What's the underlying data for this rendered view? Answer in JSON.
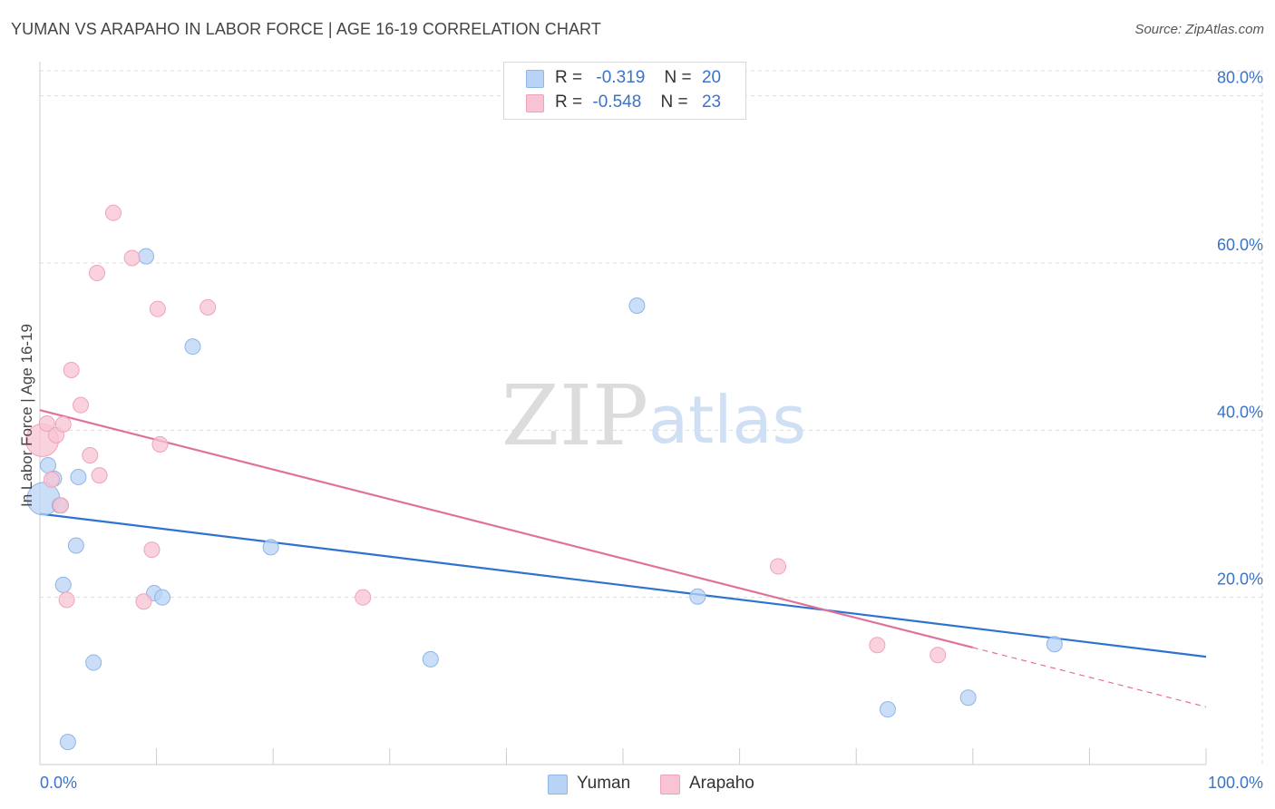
{
  "title": "YUMAN VS ARAPAHO IN LABOR FORCE | AGE 16-19 CORRELATION CHART",
  "source": "Source: ZipAtlas.com",
  "watermark": {
    "zip": "ZIP",
    "atlas": "atlas"
  },
  "legend": {
    "yuman": {
      "r_label": "R =",
      "r_value": "-0.319",
      "n_label": "N =",
      "n_value": "20"
    },
    "arapaho": {
      "r_label": "R =",
      "r_value": "-0.548",
      "n_label": "N =",
      "n_value": "23"
    }
  },
  "bottom_legend": {
    "yuman": "Yuman",
    "arapaho": "Arapaho"
  },
  "colors": {
    "yuman_fill": "#b8d3f5",
    "yuman_stroke": "#8fb5e6",
    "yuman_line": "#2f72d0",
    "arapaho_fill": "#f8c3d3",
    "arapaho_stroke": "#efa3ba",
    "arapaho_line": "#e0719a",
    "axis_label": "#3a73c7",
    "grid": "#dddddd"
  },
  "chart_data": {
    "type": "scatter",
    "title": "YUMAN VS ARAPAHO IN LABOR FORCE | AGE 16-19 CORRELATION CHART",
    "xlabel": "",
    "ylabel": "In Labor Force | Age 16-19",
    "xlim": [
      0,
      100
    ],
    "ylim": [
      0,
      83
    ],
    "x_tick_labels": [
      "0.0%",
      "100.0%"
    ],
    "y_ticks": [
      20,
      40,
      60,
      80
    ],
    "y_tick_labels": [
      "20.0%",
      "40.0%",
      "60.0%",
      "80.0%"
    ],
    "grid": true,
    "series": [
      {
        "name": "Yuman",
        "points": [
          {
            "x": 0.3,
            "y": 31.8,
            "big": true
          },
          {
            "x": 0.7,
            "y": 35.8
          },
          {
            "x": 1.2,
            "y": 34.2
          },
          {
            "x": 1.7,
            "y": 31.0
          },
          {
            "x": 2.0,
            "y": 21.5
          },
          {
            "x": 2.4,
            "y": 2.7
          },
          {
            "x": 3.1,
            "y": 26.2
          },
          {
            "x": 3.3,
            "y": 34.4
          },
          {
            "x": 4.6,
            "y": 12.2
          },
          {
            "x": 9.1,
            "y": 60.8
          },
          {
            "x": 9.8,
            "y": 20.5
          },
          {
            "x": 10.5,
            "y": 20.0
          },
          {
            "x": 13.1,
            "y": 50.0
          },
          {
            "x": 19.8,
            "y": 26.0
          },
          {
            "x": 33.5,
            "y": 12.6
          },
          {
            "x": 51.2,
            "y": 54.9
          },
          {
            "x": 56.4,
            "y": 20.1
          },
          {
            "x": 72.7,
            "y": 6.6
          },
          {
            "x": 79.6,
            "y": 8.0
          },
          {
            "x": 87.0,
            "y": 14.4
          }
        ],
        "trend": {
          "x1": 0,
          "y1": 30.0,
          "x2": 100,
          "y2": 12.9
        }
      },
      {
        "name": "Arapaho",
        "points": [
          {
            "x": 0.2,
            "y": 38.8,
            "big": true
          },
          {
            "x": 0.6,
            "y": 40.8
          },
          {
            "x": 1.0,
            "y": 34.1
          },
          {
            "x": 1.4,
            "y": 39.4
          },
          {
            "x": 1.8,
            "y": 31.0
          },
          {
            "x": 2.0,
            "y": 40.7
          },
          {
            "x": 2.3,
            "y": 19.7
          },
          {
            "x": 2.7,
            "y": 47.2
          },
          {
            "x": 3.5,
            "y": 43.0
          },
          {
            "x": 4.3,
            "y": 37.0
          },
          {
            "x": 4.9,
            "y": 58.8
          },
          {
            "x": 5.1,
            "y": 34.6
          },
          {
            "x": 6.3,
            "y": 66.0
          },
          {
            "x": 7.9,
            "y": 60.6
          },
          {
            "x": 8.9,
            "y": 19.5
          },
          {
            "x": 9.6,
            "y": 25.7
          },
          {
            "x": 10.1,
            "y": 54.5
          },
          {
            "x": 10.3,
            "y": 38.3
          },
          {
            "x": 14.4,
            "y": 54.7
          },
          {
            "x": 27.7,
            "y": 20.0
          },
          {
            "x": 63.3,
            "y": 23.7
          },
          {
            "x": 71.8,
            "y": 14.3
          },
          {
            "x": 77.0,
            "y": 13.1
          }
        ],
        "trend": {
          "x1": 0,
          "y1": 42.4,
          "x2": 80,
          "y2": 14.0
        },
        "trend_dashed": {
          "x1": 80,
          "y1": 14.0,
          "x2": 100,
          "y2": 6.9
        }
      }
    ]
  }
}
